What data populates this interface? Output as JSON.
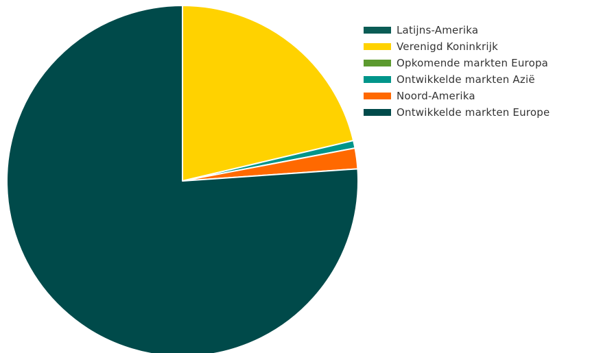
{
  "chart_data": {
    "type": "pie",
    "title": "",
    "legend_position": "top-right",
    "start_angle_deg": 0,
    "slices": [
      {
        "label": "Latijns-Amerika",
        "value": 0.0,
        "color": "#0a5c55"
      },
      {
        "label": "Verenigd Koninkrijk",
        "value": 21.3,
        "color": "#ffd200"
      },
      {
        "label": "Opkomende markten Europa",
        "value": 0.0,
        "color": "#5c9a2f"
      },
      {
        "label": "Ontwikkelde markten Azië",
        "value": 0.7,
        "color": "#00958a"
      },
      {
        "label": "Noord-Amerika",
        "value": 1.9,
        "color": "#ff6900"
      },
      {
        "label": "Ontwikkelde markten Europe",
        "value": 76.1,
        "color": "#004a4a"
      }
    ]
  }
}
